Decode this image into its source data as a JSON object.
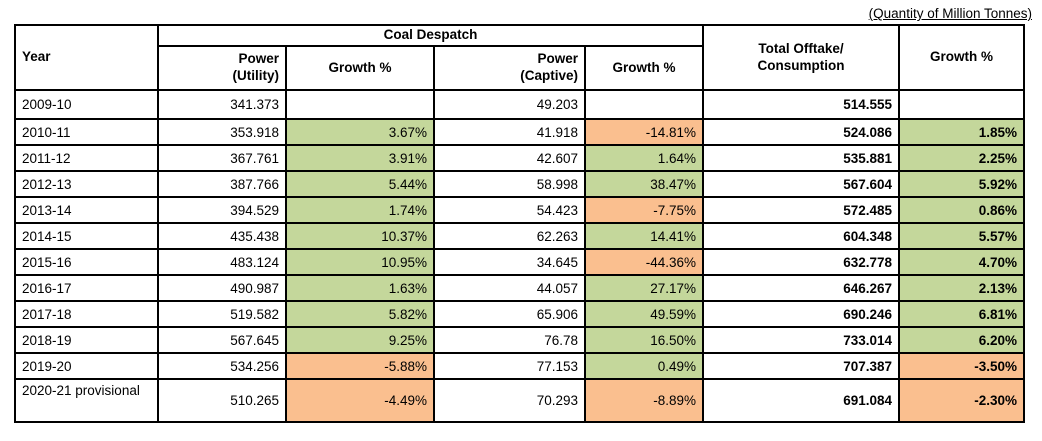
{
  "caption": "(Quantity of Million Tonnes)",
  "colors": {
    "positive_growth_bg": "#C4D79B",
    "negative_growth_bg": "#FABF8F",
    "border": "#000000",
    "text": "#000000"
  },
  "header": {
    "year": "Year",
    "coal_despatch_group": "Coal Despatch",
    "power_utility": "Power\n(Utility)",
    "growth_utility": "Growth %",
    "power_captive": "Power\n(Captive)",
    "growth_captive": "Growth %",
    "total_offtake": "Total Offtake/\nConsumption",
    "growth_total": "Growth %"
  },
  "rows": [
    {
      "year": "2009-10",
      "power_utility": "341.373",
      "growth_utility": "",
      "power_captive": "49.203",
      "growth_captive": "",
      "total": "514.555",
      "growth_total": ""
    },
    {
      "year": "2010-11",
      "power_utility": "353.918",
      "growth_utility": "3.67%",
      "power_captive": "41.918",
      "growth_captive": "-14.81%",
      "total": "524.086",
      "growth_total": "1.85%"
    },
    {
      "year": "2011-12",
      "power_utility": "367.761",
      "growth_utility": "3.91%",
      "power_captive": "42.607",
      "growth_captive": "1.64%",
      "total": "535.881",
      "growth_total": "2.25%"
    },
    {
      "year": "2012-13",
      "power_utility": "387.766",
      "growth_utility": "5.44%",
      "power_captive": "58.998",
      "growth_captive": "38.47%",
      "total": "567.604",
      "growth_total": "5.92%"
    },
    {
      "year": "2013-14",
      "power_utility": "394.529",
      "growth_utility": "1.74%",
      "power_captive": "54.423",
      "growth_captive": "-7.75%",
      "total": "572.485",
      "growth_total": "0.86%"
    },
    {
      "year": "2014-15",
      "power_utility": "435.438",
      "growth_utility": "10.37%",
      "power_captive": "62.263",
      "growth_captive": "14.41%",
      "total": "604.348",
      "growth_total": "5.57%"
    },
    {
      "year": "2015-16",
      "power_utility": "483.124",
      "growth_utility": "10.95%",
      "power_captive": "34.645",
      "growth_captive": "-44.36%",
      "total": "632.778",
      "growth_total": "4.70%"
    },
    {
      "year": "2016-17",
      "power_utility": "490.987",
      "growth_utility": "1.63%",
      "power_captive": "44.057",
      "growth_captive": "27.17%",
      "total": "646.267",
      "growth_total": "2.13%"
    },
    {
      "year": "2017-18",
      "power_utility": "519.582",
      "growth_utility": "5.82%",
      "power_captive": "65.906",
      "growth_captive": "49.59%",
      "total": "690.246",
      "growth_total": "6.81%"
    },
    {
      "year": "2018-19",
      "power_utility": "567.645",
      "growth_utility": "9.25%",
      "power_captive": "76.78",
      "growth_captive": "16.50%",
      "total": "733.014",
      "growth_total": "6.20%"
    },
    {
      "year": "2019-20",
      "power_utility": "534.256",
      "growth_utility": "-5.88%",
      "power_captive": "77.153",
      "growth_captive": "0.49%",
      "total": "707.387",
      "growth_total": "-3.50%"
    },
    {
      "year": "2020-21 provisional",
      "power_utility": "510.265",
      "growth_utility": "-4.49%",
      "power_captive": "70.293",
      "growth_captive": "-8.89%",
      "total": "691.084",
      "growth_total": "-2.30%"
    }
  ]
}
